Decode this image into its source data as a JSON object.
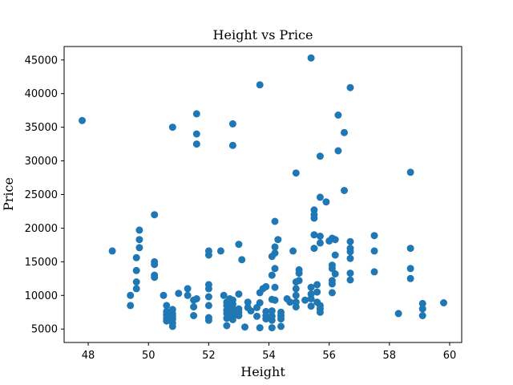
{
  "chart_data": {
    "type": "scatter",
    "title": "Height vs Price",
    "xlabel": "Height",
    "ylabel": "Price",
    "xlim": [
      47.2,
      60.4
    ],
    "ylim": [
      3000,
      47000
    ],
    "xticks": [
      48,
      50,
      52,
      54,
      56,
      58,
      60
    ],
    "yticks": [
      5000,
      10000,
      15000,
      20000,
      25000,
      30000,
      35000,
      40000,
      45000
    ],
    "grid": false,
    "marker_color": "#1f77b4",
    "series": [
      {
        "points": [
          [
            47.8,
            36000
          ],
          [
            48.8,
            16600
          ],
          [
            49.4,
            10000
          ],
          [
            49.4,
            8500
          ],
          [
            49.6,
            15600
          ],
          [
            49.6,
            13700
          ],
          [
            49.6,
            12000
          ],
          [
            49.6,
            11000
          ],
          [
            49.7,
            19700
          ],
          [
            49.7,
            18300
          ],
          [
            49.7,
            17100
          ],
          [
            50.2,
            22000
          ],
          [
            50.2,
            15000
          ],
          [
            50.2,
            14600
          ],
          [
            50.2,
            13000
          ],
          [
            50.2,
            12700
          ],
          [
            50.5,
            10000
          ],
          [
            50.6,
            8500
          ],
          [
            50.6,
            7600
          ],
          [
            50.6,
            7100
          ],
          [
            50.6,
            6600
          ],
          [
            50.6,
            6200
          ],
          [
            50.7,
            6500
          ],
          [
            50.8,
            35000
          ],
          [
            50.8,
            7900
          ],
          [
            50.8,
            7300
          ],
          [
            50.8,
            6900
          ],
          [
            50.8,
            6500
          ],
          [
            50.8,
            5900
          ],
          [
            50.8,
            5400
          ],
          [
            51.0,
            10300
          ],
          [
            51.3,
            11000
          ],
          [
            51.3,
            10000
          ],
          [
            51.5,
            9300
          ],
          [
            51.5,
            8300
          ],
          [
            51.5,
            7000
          ],
          [
            51.6,
            37000
          ],
          [
            51.6,
            34000
          ],
          [
            51.6,
            32500
          ],
          [
            51.6,
            9500
          ],
          [
            52.0,
            16600
          ],
          [
            52.0,
            16000
          ],
          [
            52.0,
            11600
          ],
          [
            52.0,
            11000
          ],
          [
            52.0,
            9800
          ],
          [
            52.0,
            8500
          ],
          [
            52.0,
            6700
          ],
          [
            52.0,
            6300
          ],
          [
            52.4,
            16600
          ],
          [
            52.5,
            10000
          ],
          [
            52.6,
            9000
          ],
          [
            52.6,
            8500
          ],
          [
            52.6,
            7800
          ],
          [
            52.6,
            7300
          ],
          [
            52.6,
            6600
          ],
          [
            52.6,
            5500
          ],
          [
            52.7,
            9500
          ],
          [
            52.7,
            8300
          ],
          [
            52.7,
            7500
          ],
          [
            52.8,
            35500
          ],
          [
            52.8,
            32300
          ],
          [
            52.8,
            9300
          ],
          [
            52.8,
            8700
          ],
          [
            52.8,
            8000
          ],
          [
            52.8,
            7400
          ],
          [
            52.8,
            6900
          ],
          [
            52.8,
            6400
          ],
          [
            53.0,
            17600
          ],
          [
            53.0,
            10200
          ],
          [
            53.0,
            8000
          ],
          [
            53.0,
            7500
          ],
          [
            53.0,
            7000
          ],
          [
            53.1,
            15300
          ],
          [
            53.2,
            5300
          ],
          [
            53.3,
            9000
          ],
          [
            53.3,
            8200
          ],
          [
            53.4,
            7700
          ],
          [
            53.6,
            8200
          ],
          [
            53.6,
            6900
          ],
          [
            53.7,
            41300
          ],
          [
            53.7,
            10400
          ],
          [
            53.7,
            8900
          ],
          [
            53.7,
            5200
          ],
          [
            53.8,
            11000
          ],
          [
            53.9,
            11300
          ],
          [
            53.9,
            7600
          ],
          [
            53.9,
            7000
          ],
          [
            53.9,
            6500
          ],
          [
            54.1,
            15800
          ],
          [
            54.1,
            13000
          ],
          [
            54.1,
            9400
          ],
          [
            54.1,
            7700
          ],
          [
            54.1,
            6900
          ],
          [
            54.1,
            6300
          ],
          [
            54.1,
            5200
          ],
          [
            54.2,
            21000
          ],
          [
            54.2,
            17200
          ],
          [
            54.2,
            16300
          ],
          [
            54.2,
            14000
          ],
          [
            54.2,
            11200
          ],
          [
            54.2,
            9300
          ],
          [
            54.3,
            18300
          ],
          [
            54.4,
            7500
          ],
          [
            54.4,
            7000
          ],
          [
            54.4,
            6500
          ],
          [
            54.4,
            5400
          ],
          [
            54.6,
            9500
          ],
          [
            54.7,
            9000
          ],
          [
            54.8,
            16600
          ],
          [
            54.9,
            28200
          ],
          [
            54.9,
            12000
          ],
          [
            54.9,
            11000
          ],
          [
            54.9,
            10000
          ],
          [
            54.9,
            9000
          ],
          [
            54.9,
            8300
          ],
          [
            55.0,
            13800
          ],
          [
            55.0,
            13300
          ],
          [
            55.0,
            12200
          ],
          [
            55.2,
            9300
          ],
          [
            55.4,
            45300
          ],
          [
            55.4,
            11200
          ],
          [
            55.4,
            10200
          ],
          [
            55.4,
            9500
          ],
          [
            55.4,
            8400
          ],
          [
            55.5,
            22700
          ],
          [
            55.5,
            22000
          ],
          [
            55.5,
            21500
          ],
          [
            55.5,
            19000
          ],
          [
            55.5,
            17000
          ],
          [
            55.6,
            11600
          ],
          [
            55.6,
            10500
          ],
          [
            55.6,
            9000
          ],
          [
            55.7,
            30700
          ],
          [
            55.7,
            24600
          ],
          [
            55.7,
            18800
          ],
          [
            55.7,
            17800
          ],
          [
            55.7,
            8500
          ],
          [
            55.7,
            8000
          ],
          [
            55.7,
            7500
          ],
          [
            55.9,
            23900
          ],
          [
            56.0,
            18100
          ],
          [
            56.1,
            18500
          ],
          [
            56.1,
            14500
          ],
          [
            56.1,
            14000
          ],
          [
            56.1,
            12200
          ],
          [
            56.1,
            11700
          ],
          [
            56.1,
            10400
          ],
          [
            56.2,
            18300
          ],
          [
            56.2,
            16000
          ],
          [
            56.2,
            13200
          ],
          [
            56.3,
            36800
          ],
          [
            56.3,
            31500
          ],
          [
            56.5,
            34200
          ],
          [
            56.5,
            25600
          ],
          [
            56.7,
            40900
          ],
          [
            56.7,
            18000
          ],
          [
            56.7,
            17000
          ],
          [
            56.7,
            16500
          ],
          [
            56.7,
            15500
          ],
          [
            56.7,
            13300
          ],
          [
            56.7,
            12300
          ],
          [
            57.5,
            18900
          ],
          [
            57.5,
            16600
          ],
          [
            57.5,
            13500
          ],
          [
            58.3,
            7300
          ],
          [
            58.7,
            28300
          ],
          [
            58.7,
            17000
          ],
          [
            58.7,
            14000
          ],
          [
            58.7,
            12500
          ],
          [
            59.1,
            8800
          ],
          [
            59.1,
            8000
          ],
          [
            59.1,
            7000
          ],
          [
            59.8,
            8900
          ]
        ]
      }
    ]
  }
}
